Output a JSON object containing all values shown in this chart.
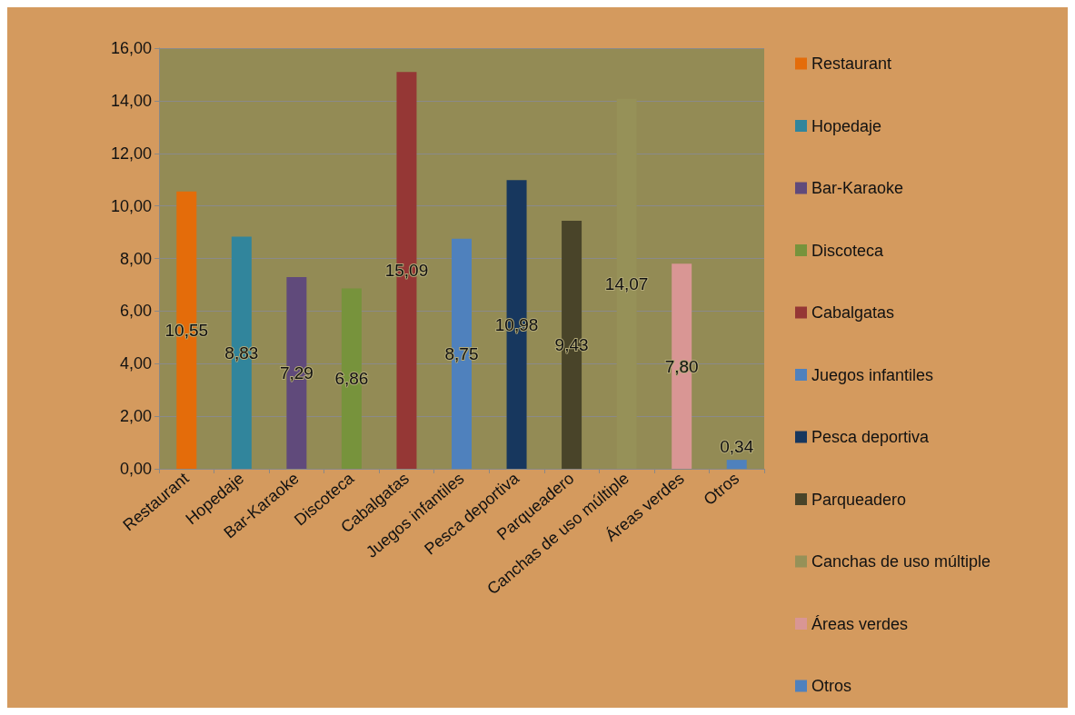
{
  "chart_data": {
    "type": "bar",
    "categories": [
      "Restaurant",
      "Hopedaje",
      "Bar-Karaoke",
      "Discoteca",
      "Cabalgatas",
      "Juegos infantiles",
      "Pesca deportiva",
      "Parqueadero",
      "Canchas de uso múltiple",
      "Áreas verdes",
      "Otros"
    ],
    "series": [
      {
        "name": "Restaurant",
        "color": "#e46c0a",
        "values": [
          10.55,
          null,
          null,
          null,
          null,
          null,
          null,
          null,
          null,
          null,
          null
        ],
        "value_labels": [
          "10,55",
          null,
          null,
          null,
          null,
          null,
          null,
          null,
          null,
          null,
          null
        ]
      },
      {
        "name": "Hopedaje",
        "color": "#31859c",
        "values": [
          null,
          8.83,
          null,
          null,
          null,
          null,
          null,
          null,
          null,
          null,
          null
        ],
        "value_labels": [
          null,
          "8,83",
          null,
          null,
          null,
          null,
          null,
          null,
          null,
          null,
          null
        ]
      },
      {
        "name": "Bar-Karaoke",
        "color": "#604a7b",
        "values": [
          null,
          null,
          7.29,
          null,
          null,
          null,
          null,
          null,
          null,
          null,
          null
        ],
        "value_labels": [
          null,
          null,
          "7,29",
          null,
          null,
          null,
          null,
          null,
          null,
          null,
          null
        ]
      },
      {
        "name": "Discoteca",
        "color": "#77933c",
        "values": [
          null,
          null,
          null,
          6.86,
          null,
          null,
          null,
          null,
          null,
          null,
          null
        ],
        "value_labels": [
          null,
          null,
          null,
          "6,86",
          null,
          null,
          null,
          null,
          null,
          null,
          null
        ]
      },
      {
        "name": "Cabalgatas",
        "color": "#953735",
        "values": [
          null,
          null,
          null,
          null,
          15.09,
          null,
          null,
          null,
          null,
          null,
          null
        ],
        "value_labels": [
          null,
          null,
          null,
          null,
          "15,09",
          null,
          null,
          null,
          null,
          null,
          null
        ]
      },
      {
        "name": "Juegos infantiles",
        "color": "#4f81bd",
        "values": [
          null,
          null,
          null,
          null,
          null,
          8.75,
          null,
          null,
          null,
          null,
          null
        ],
        "value_labels": [
          null,
          null,
          null,
          null,
          null,
          "8,75",
          null,
          null,
          null,
          null,
          null
        ]
      },
      {
        "name": "Pesca deportiva",
        "color": "#17375e",
        "values": [
          null,
          null,
          null,
          null,
          null,
          null,
          10.98,
          null,
          null,
          null,
          null
        ],
        "value_labels": [
          null,
          null,
          null,
          null,
          null,
          null,
          "10,98",
          null,
          null,
          null,
          null
        ]
      },
      {
        "name": "Parqueadero",
        "color": "#494429",
        "values": [
          null,
          null,
          null,
          null,
          null,
          null,
          null,
          9.43,
          null,
          null,
          null
        ],
        "value_labels": [
          null,
          null,
          null,
          null,
          null,
          null,
          null,
          "9,43",
          null,
          null,
          null
        ]
      },
      {
        "name": "Canchas de uso múltiple",
        "color": "#969158",
        "values": [
          null,
          null,
          null,
          null,
          null,
          null,
          null,
          null,
          14.07,
          null,
          null
        ],
        "value_labels": [
          null,
          null,
          null,
          null,
          null,
          null,
          null,
          null,
          "14,07",
          null,
          null
        ]
      },
      {
        "name": "Áreas verdes",
        "color": "#d99694",
        "values": [
          null,
          null,
          null,
          null,
          null,
          null,
          null,
          null,
          null,
          7.8,
          null
        ],
        "value_labels": [
          null,
          null,
          null,
          null,
          null,
          null,
          null,
          null,
          null,
          "7,80",
          null
        ]
      },
      {
        "name": "Otros",
        "color": "#4f81bd",
        "values": [
          null,
          null,
          null,
          null,
          null,
          null,
          null,
          null,
          null,
          null,
          0.34
        ],
        "value_labels": [
          null,
          null,
          null,
          null,
          null,
          null,
          null,
          null,
          null,
          null,
          "0,34"
        ]
      }
    ],
    "ylim": [
      0,
      16
    ],
    "yticks": [
      {
        "value": 0,
        "label": "0,00"
      },
      {
        "value": 2,
        "label": "2,00"
      },
      {
        "value": 4,
        "label": "4,00"
      },
      {
        "value": 6,
        "label": "6,00"
      },
      {
        "value": 8,
        "label": "8,00"
      },
      {
        "value": 10,
        "label": "10,00"
      },
      {
        "value": 12,
        "label": "12,00"
      },
      {
        "value": 14,
        "label": "14,00"
      },
      {
        "value": 16,
        "label": "16,00"
      }
    ],
    "grid": "y",
    "legend": "right"
  }
}
